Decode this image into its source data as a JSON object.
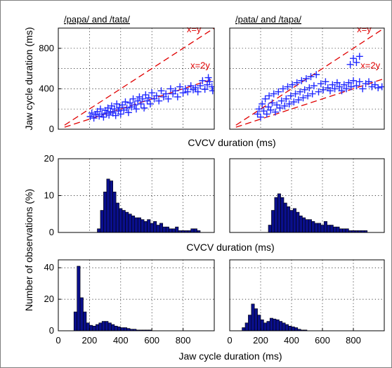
{
  "figure": {
    "ylabel_top": "Jaw cycle duration (ms)",
    "xlabel_top": "CVCV duration (ms)",
    "ylabel_hist": "Number of observations (%)",
    "xlabel_mid": "CVCV duration (ms)",
    "xlabel_bottom": "Jaw cycle duration (ms)"
  },
  "colors": {
    "points": "#1f28ff",
    "bars": "#0a0f8c",
    "reference_lines": "#e00000",
    "grid": "#000000"
  },
  "chart_data": [
    {
      "id": "scatter-left",
      "type": "scatter",
      "title": "/papa/ and /tata/",
      "xlim": [
        0,
        1000
      ],
      "ylim": [
        0,
        1000
      ],
      "xticks": [],
      "yticks": [
        0,
        400,
        800
      ],
      "marker": "plus",
      "grid": true,
      "reference_lines": [
        {
          "label": "x=y",
          "slope": 1
        },
        {
          "label": "x=2y",
          "slope": 0.5
        }
      ],
      "points": [
        [
          205,
          125
        ],
        [
          215,
          160
        ],
        [
          228,
          110
        ],
        [
          240,
          145
        ],
        [
          250,
          175
        ],
        [
          262,
          130
        ],
        [
          270,
          200
        ],
        [
          280,
          150
        ],
        [
          290,
          120
        ],
        [
          300,
          185
        ],
        [
          310,
          160
        ],
        [
          318,
          210
        ],
        [
          325,
          140
        ],
        [
          335,
          175
        ],
        [
          342,
          230
        ],
        [
          350,
          160
        ],
        [
          360,
          200
        ],
        [
          368,
          135
        ],
        [
          375,
          250
        ],
        [
          385,
          180
        ],
        [
          392,
          215
        ],
        [
          400,
          150
        ],
        [
          410,
          240
        ],
        [
          420,
          190
        ],
        [
          430,
          270
        ],
        [
          440,
          210
        ],
        [
          450,
          165
        ],
        [
          460,
          260
        ],
        [
          470,
          220
        ],
        [
          480,
          300
        ],
        [
          490,
          240
        ],
        [
          500,
          200
        ],
        [
          510,
          280
        ],
        [
          520,
          320
        ],
        [
          530,
          250
        ],
        [
          540,
          300
        ],
        [
          550,
          210
        ],
        [
          560,
          340
        ],
        [
          570,
          280
        ],
        [
          580,
          310
        ],
        [
          590,
          250
        ],
        [
          600,
          360
        ],
        [
          615,
          300
        ],
        [
          630,
          330
        ],
        [
          645,
          280
        ],
        [
          660,
          380
        ],
        [
          675,
          320
        ],
        [
          690,
          350
        ],
        [
          705,
          300
        ],
        [
          720,
          400
        ],
        [
          735,
          350
        ],
        [
          750,
          380
        ],
        [
          765,
          320
        ],
        [
          780,
          420
        ],
        [
          800,
          360
        ],
        [
          815,
          400
        ],
        [
          830,
          370
        ],
        [
          850,
          430
        ],
        [
          865,
          390
        ],
        [
          880,
          410
        ],
        [
          895,
          370
        ],
        [
          910,
          430
        ],
        [
          925,
          480
        ],
        [
          940,
          395
        ],
        [
          955,
          440
        ],
        [
          962,
          510
        ],
        [
          970,
          470
        ],
        [
          985,
          420
        ],
        [
          990,
          380
        ]
      ]
    },
    {
      "id": "scatter-right",
      "type": "scatter",
      "title": "/pata/ and /tapa/",
      "xlim": [
        0,
        1000
      ],
      "ylim": [
        0,
        1000
      ],
      "xticks": [],
      "yticks": [],
      "marker": "plus",
      "grid": true,
      "reference_lines": [
        {
          "label": "x=y",
          "slope": 1
        },
        {
          "label": "x=2y",
          "slope": 0.5
        }
      ],
      "points": [
        [
          180,
          150
        ],
        [
          190,
          200
        ],
        [
          200,
          120
        ],
        [
          210,
          250
        ],
        [
          220,
          180
        ],
        [
          230,
          300
        ],
        [
          240,
          150
        ],
        [
          250,
          220
        ],
        [
          255,
          330
        ],
        [
          265,
          190
        ],
        [
          275,
          260
        ],
        [
          285,
          350
        ],
        [
          295,
          170
        ],
        [
          305,
          240
        ],
        [
          315,
          370
        ],
        [
          325,
          210
        ],
        [
          335,
          280
        ],
        [
          345,
          400
        ],
        [
          355,
          230
        ],
        [
          365,
          300
        ],
        [
          375,
          420
        ],
        [
          385,
          250
        ],
        [
          395,
          330
        ],
        [
          405,
          440
        ],
        [
          415,
          270
        ],
        [
          425,
          350
        ],
        [
          435,
          460
        ],
        [
          445,
          290
        ],
        [
          455,
          370
        ],
        [
          465,
          480
        ],
        [
          475,
          310
        ],
        [
          485,
          390
        ],
        [
          495,
          500
        ],
        [
          505,
          330
        ],
        [
          515,
          410
        ],
        [
          525,
          520
        ],
        [
          535,
          350
        ],
        [
          545,
          430
        ],
        [
          560,
          540
        ],
        [
          575,
          370
        ],
        [
          590,
          450
        ],
        [
          605,
          390
        ],
        [
          620,
          470
        ],
        [
          635,
          410
        ],
        [
          650,
          380
        ],
        [
          665,
          440
        ],
        [
          680,
          400
        ],
        [
          695,
          460
        ],
        [
          710,
          420
        ],
        [
          725,
          380
        ],
        [
          740,
          440
        ],
        [
          755,
          400
        ],
        [
          770,
          460
        ],
        [
          785,
          420
        ],
        [
          800,
          480
        ],
        [
          820,
          430
        ],
        [
          840,
          470
        ],
        [
          860,
          400
        ],
        [
          880,
          450
        ],
        [
          900,
          470
        ],
        [
          920,
          420
        ],
        [
          940,
          440
        ],
        [
          960,
          410
        ],
        [
          985,
          420
        ],
        [
          780,
          640
        ],
        [
          800,
          700
        ],
        [
          820,
          660
        ],
        [
          840,
          720
        ]
      ]
    },
    {
      "id": "hist-cvcv-left",
      "type": "bar",
      "title": "",
      "xlim": [
        0,
        1000
      ],
      "ylim": [
        0,
        20
      ],
      "xticks": [],
      "yticks": [
        0,
        10,
        20
      ],
      "grid": true,
      "bin_width": 20,
      "bins": [
        [
          260,
          1
        ],
        [
          280,
          6
        ],
        [
          300,
          11
        ],
        [
          320,
          14.5
        ],
        [
          340,
          14
        ],
        [
          360,
          11
        ],
        [
          380,
          8
        ],
        [
          400,
          6.5
        ],
        [
          420,
          6
        ],
        [
          440,
          5.5
        ],
        [
          460,
          5
        ],
        [
          480,
          4.5
        ],
        [
          500,
          4
        ],
        [
          520,
          4
        ],
        [
          540,
          3.5
        ],
        [
          560,
          3
        ],
        [
          580,
          3.5
        ],
        [
          600,
          2.5
        ],
        [
          620,
          3
        ],
        [
          640,
          2
        ],
        [
          660,
          2.5
        ],
        [
          680,
          1.5
        ],
        [
          700,
          1.5
        ],
        [
          720,
          1
        ],
        [
          740,
          1
        ],
        [
          760,
          1.5
        ],
        [
          780,
          0.5
        ],
        [
          800,
          0.5
        ],
        [
          820,
          0.5
        ],
        [
          840,
          0.5
        ],
        [
          860,
          1
        ],
        [
          880,
          1
        ],
        [
          900,
          0.5
        ]
      ]
    },
    {
      "id": "hist-cvcv-right",
      "type": "bar",
      "title": "",
      "xlim": [
        0,
        1000
      ],
      "ylim": [
        0,
        20
      ],
      "xticks": [],
      "yticks": [],
      "grid": true,
      "bin_width": 20,
      "bins": [
        [
          260,
          2
        ],
        [
          280,
          6
        ],
        [
          300,
          9.5
        ],
        [
          320,
          10.5
        ],
        [
          340,
          9.5
        ],
        [
          360,
          8
        ],
        [
          380,
          7
        ],
        [
          400,
          6
        ],
        [
          420,
          6.5
        ],
        [
          440,
          5.5
        ],
        [
          460,
          4.5
        ],
        [
          480,
          4
        ],
        [
          500,
          3.5
        ],
        [
          520,
          3.5
        ],
        [
          540,
          3
        ],
        [
          560,
          2.5
        ],
        [
          580,
          2.5
        ],
        [
          600,
          2
        ],
        [
          620,
          3
        ],
        [
          640,
          2
        ],
        [
          660,
          2
        ],
        [
          680,
          1.5
        ],
        [
          700,
          1.5
        ],
        [
          720,
          1
        ],
        [
          740,
          1
        ],
        [
          760,
          1
        ],
        [
          780,
          0.5
        ],
        [
          800,
          0.5
        ],
        [
          820,
          0.5
        ],
        [
          840,
          0.5
        ],
        [
          860,
          0.5
        ],
        [
          880,
          0.5
        ]
      ]
    },
    {
      "id": "hist-jaw-left",
      "type": "bar",
      "title": "",
      "xlim": [
        0,
        1000
      ],
      "ylim": [
        0,
        45
      ],
      "xticks": [
        0,
        200,
        400,
        600,
        800
      ],
      "yticks": [
        0,
        20,
        40
      ],
      "grid": true,
      "bin_width": 20,
      "bins": [
        [
          110,
          12
        ],
        [
          130,
          41
        ],
        [
          150,
          21
        ],
        [
          170,
          12
        ],
        [
          190,
          5
        ],
        [
          210,
          3.5
        ],
        [
          230,
          3
        ],
        [
          250,
          4
        ],
        [
          270,
          5
        ],
        [
          290,
          6
        ],
        [
          310,
          6
        ],
        [
          330,
          5
        ],
        [
          350,
          4
        ],
        [
          370,
          3
        ],
        [
          390,
          2.5
        ],
        [
          410,
          2
        ],
        [
          430,
          2
        ],
        [
          450,
          1.5
        ],
        [
          470,
          1
        ],
        [
          490,
          1
        ],
        [
          510,
          0.5
        ],
        [
          530,
          0.5
        ],
        [
          550,
          0.5
        ],
        [
          570,
          0.5
        ],
        [
          590,
          0.5
        ]
      ]
    },
    {
      "id": "hist-jaw-right",
      "type": "bar",
      "title": "",
      "xlim": [
        0,
        1000
      ],
      "ylim": [
        0,
        45
      ],
      "xticks": [
        0,
        200,
        400,
        600,
        800
      ],
      "yticks": [],
      "grid": true,
      "bin_width": 20,
      "bins": [
        [
          90,
          2
        ],
        [
          110,
          5
        ],
        [
          130,
          10
        ],
        [
          150,
          17
        ],
        [
          170,
          14
        ],
        [
          190,
          10
        ],
        [
          210,
          7
        ],
        [
          230,
          5
        ],
        [
          250,
          6
        ],
        [
          270,
          8
        ],
        [
          290,
          7.5
        ],
        [
          310,
          7
        ],
        [
          330,
          6
        ],
        [
          350,
          5
        ],
        [
          370,
          4
        ],
        [
          390,
          3
        ],
        [
          410,
          2.5
        ],
        [
          430,
          2
        ],
        [
          450,
          1
        ],
        [
          470,
          0.5
        ],
        [
          490,
          0.5
        ]
      ]
    }
  ]
}
